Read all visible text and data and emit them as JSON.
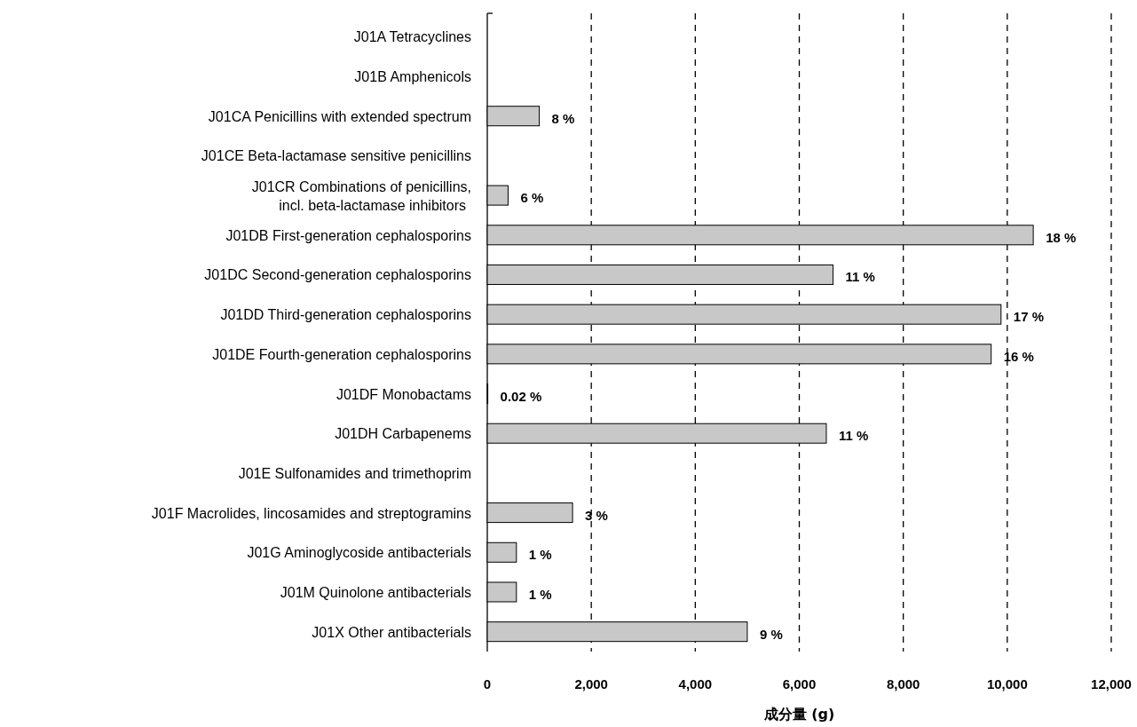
{
  "chart_data": {
    "type": "bar",
    "orientation": "horizontal",
    "xlabel": "成分量 (g)",
    "categories": [
      "J01A Tetracyclines",
      "J01B Amphenicols",
      "J01CA Penicillins with extended spectrum",
      "J01CE Beta-lactamase sensitive penicillins",
      "J01CR Combinations of penicillins,\nincl. beta-lactamase inhibitors",
      "J01DB First-generation cephalosporins",
      "J01DC Second-generation cephalosporins",
      "J01DD Third-generation cephalosporins",
      "J01DE Fourth-generation cephalosporins",
      "J01DF Monobactams",
      "J01DH Carbapenems",
      "J01E Sulfonamides and trimethoprim",
      "J01F Macrolides, lincosamides and streptogramins",
      "J01G Aminoglycoside antibacterials",
      "J01M Quinolone antibacterials",
      "J01X Other antibacterials"
    ],
    "values": [
      null,
      null,
      1000,
      null,
      400,
      10500,
      6650,
      9880,
      9690,
      10,
      6520,
      null,
      1640,
      560,
      560,
      5000
    ],
    "annotations": [
      {
        "text": "8 %",
        "x": 1000,
        "y": "J01CA Penicillins with extended spectrum"
      },
      {
        "text": "6 %",
        "x": 400,
        "y": "J01CR Combinations of penicillins,\nincl. beta-lactamase inhibitors"
      },
      {
        "text": "18 %",
        "x": 10500,
        "y": "J01DB First-generation cephalosporins"
      },
      {
        "text": "11 %",
        "x": 6650,
        "y": "J01DC Second-generation cephalosporins"
      },
      {
        "text": "17 %",
        "x": 9880,
        "y": "J01DD Third-generation cephalosporins"
      },
      {
        "text": "16 %",
        "x": 9690,
        "y": "J01DE Fourth-generation cephalosporins"
      },
      {
        "text": "0.02 %",
        "x": 10,
        "y": "J01DF Monobactams"
      },
      {
        "text": "11 %",
        "x": 6520,
        "y": "J01DH Carbapenems"
      },
      {
        "text": "3 %",
        "x": 1640,
        "y": "J01F Macrolides, lincosamides and streptogramins"
      },
      {
        "text": "1 %",
        "x": 560,
        "y": "J01G Aminoglycoside antibacterials"
      },
      {
        "text": "1 %",
        "x": 560,
        "y": "J01M Quinolone antibacterials"
      },
      {
        "text": "9 %",
        "x": 5000,
        "y": "J01X Other antibacterials"
      }
    ],
    "color": "#c8c8c8",
    "xlim": [
      0,
      12000
    ],
    "xticks": [
      {
        "value": 0,
        "label": "0"
      },
      {
        "value": 2000,
        "label": "2,000"
      },
      {
        "value": 4000,
        "label": "4,000"
      },
      {
        "value": 6000,
        "label": "6,000"
      },
      {
        "value": 8000,
        "label": "8,000"
      },
      {
        "value": 10000,
        "label": "10,000"
      },
      {
        "value": 12000,
        "label": "12,000"
      }
    ],
    "grid": "x"
  }
}
